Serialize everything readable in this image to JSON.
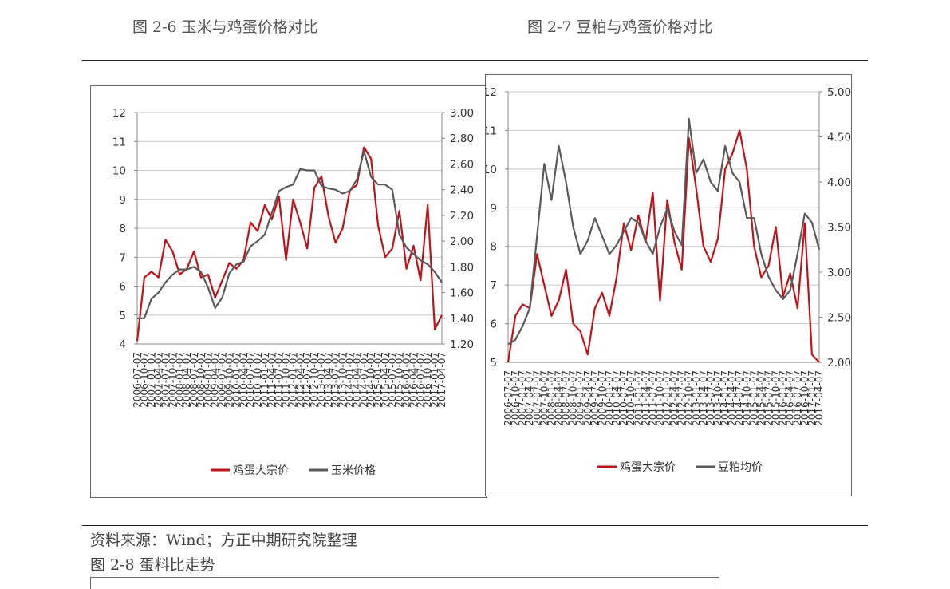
{
  "page": {
    "caption_left": "图 2-6 玉米与鸡蛋价格对比",
    "caption_right": "图 2-7 豆粕与鸡蛋价格对比",
    "source_note": "资料来源：Wind；方正中期研究院整理",
    "caption_bottom": "图 2-8 蛋料比走势"
  },
  "colors": {
    "egg": "#c0121a",
    "grain": "#5a5a5a",
    "grid": "#c8c8c8",
    "axis": "#888888"
  },
  "chart_data": [
    {
      "type": "line",
      "categories": [
        "2006-07-07",
        "2006-10-07",
        "2007-01-07",
        "2007-04-07",
        "2007-07-07",
        "2007-10-07",
        "2008-01-07",
        "2008-04-07",
        "2008-07-07",
        "2008-10-07",
        "2009-01-07",
        "2009-04-07",
        "2009-07-07",
        "2009-10-07",
        "2010-01-07",
        "2010-04-07",
        "2010-07-07",
        "2010-10-07",
        "2011-01-07",
        "2011-04-07",
        "2011-07-07",
        "2011-10-07",
        "2012-01-07",
        "2012-04-07",
        "2012-07-07",
        "2012-10-07",
        "2013-01-07",
        "2013-04-07",
        "2013-07-07",
        "2013-10-07",
        "2014-01-07",
        "2014-04-07",
        "2014-07-07",
        "2014-10-07",
        "2015-01-07",
        "2015-04-07",
        "2015-07-07",
        "2015-10-07",
        "2016-01-07",
        "2016-04-07",
        "2016-07-07",
        "2016-10-07",
        "2017-01-07",
        "2017-04-07"
      ],
      "y_left_ticks": [
        "12",
        "11",
        "10",
        "9",
        "8",
        "7",
        "6",
        "5",
        "4"
      ],
      "y_right_ticks": [
        "3.00",
        "2.80",
        "2.60",
        "2.40",
        "2.20",
        "2.00",
        "1.80",
        "1.60",
        "1.40",
        "1.20"
      ],
      "ylim_left": [
        4,
        12
      ],
      "ylim_right": [
        1.2,
        3.0
      ],
      "grid": true,
      "legend_position": "bottom-center",
      "series": [
        {
          "name": "鸡蛋大宗价",
          "axis": "left",
          "values": [
            4.1,
            6.3,
            6.5,
            6.3,
            7.6,
            7.2,
            6.4,
            6.6,
            7.2,
            6.3,
            6.4,
            5.6,
            6.2,
            6.8,
            6.6,
            6.9,
            8.2,
            7.9,
            8.8,
            8.3,
            9.1,
            6.9,
            9.0,
            8.2,
            7.3,
            9.4,
            9.8,
            8.4,
            7.5,
            8.0,
            9.3,
            9.5,
            10.8,
            10.4,
            8.1,
            7.0,
            7.3,
            8.6,
            6.6,
            7.4,
            6.2,
            8.8,
            4.5,
            5.0
          ]
        },
        {
          "name": "玉米价格",
          "axis": "right",
          "values": [
            1.4,
            1.4,
            1.55,
            1.6,
            1.68,
            1.74,
            1.78,
            1.78,
            1.8,
            1.76,
            1.64,
            1.48,
            1.56,
            1.75,
            1.82,
            1.84,
            1.96,
            2.0,
            2.05,
            2.22,
            2.39,
            2.42,
            2.44,
            2.56,
            2.55,
            2.55,
            2.43,
            2.41,
            2.4,
            2.37,
            2.39,
            2.48,
            2.7,
            2.5,
            2.44,
            2.44,
            2.4,
            2.05,
            1.95,
            1.9,
            1.85,
            1.82,
            1.76,
            1.68
          ]
        }
      ]
    },
    {
      "type": "line",
      "categories": [
        "2006-07-07",
        "2006-10-07",
        "2007-01-07",
        "2007-04-07",
        "2007-07-07",
        "2007-10-07",
        "2008-01-07",
        "2008-04-07",
        "2008-07-07",
        "2008-10-07",
        "2009-01-07",
        "2009-04-07",
        "2009-07-07",
        "2009-10-07",
        "2010-01-07",
        "2010-04-07",
        "2010-07-07",
        "2010-10-07",
        "2011-01-07",
        "2011-04-07",
        "2011-07-07",
        "2011-10-07",
        "2012-01-07",
        "2012-04-07",
        "2012-07-07",
        "2012-10-07",
        "2013-01-07",
        "2013-04-07",
        "2013-07-07",
        "2013-10-07",
        "2014-01-07",
        "2014-04-07",
        "2014-07-07",
        "2014-10-07",
        "2015-01-07",
        "2015-04-07",
        "2015-07-07",
        "2015-10-07",
        "2016-01-07",
        "2016-04-07",
        "2016-07-07",
        "2016-10-07",
        "2017-01-07",
        "2017-04-07"
      ],
      "y_left_ticks": [
        "12",
        "11",
        "10",
        "9",
        "8",
        "7",
        "6",
        "5"
      ],
      "y_right_ticks": [
        "5.00",
        "4.50",
        "4.00",
        "3.50",
        "3.00",
        "2.50",
        "2.00"
      ],
      "ylim_left": [
        5,
        12
      ],
      "ylim_right": [
        2.0,
        5.0
      ],
      "grid": true,
      "legend_position": "bottom-center",
      "series": [
        {
          "name": "鸡蛋大宗价",
          "axis": "left",
          "values": [
            5.0,
            6.2,
            6.5,
            6.4,
            7.8,
            7.0,
            6.2,
            6.6,
            7.4,
            6.0,
            5.8,
            5.2,
            6.4,
            6.8,
            6.2,
            7.2,
            8.6,
            7.9,
            8.8,
            8.1,
            9.4,
            6.6,
            9.2,
            8.1,
            7.4,
            10.8,
            9.5,
            8.0,
            7.6,
            8.2,
            10.0,
            10.4,
            11.0,
            10.0,
            8.0,
            7.2,
            7.5,
            8.5,
            6.7,
            7.3,
            6.4,
            8.6,
            5.2,
            5.0
          ]
        },
        {
          "name": "豆粕均价",
          "axis": "right",
          "values": [
            2.2,
            2.25,
            2.4,
            2.6,
            3.4,
            4.2,
            3.8,
            4.4,
            4.0,
            3.5,
            3.2,
            3.35,
            3.6,
            3.4,
            3.2,
            3.3,
            3.45,
            3.6,
            3.55,
            3.35,
            3.2,
            3.5,
            3.7,
            3.45,
            3.3,
            4.7,
            4.1,
            4.25,
            4.0,
            3.9,
            4.4,
            4.1,
            4.0,
            3.6,
            3.6,
            3.2,
            2.95,
            2.8,
            2.7,
            2.8,
            3.2,
            3.65,
            3.55,
            3.25
          ]
        }
      ]
    }
  ]
}
